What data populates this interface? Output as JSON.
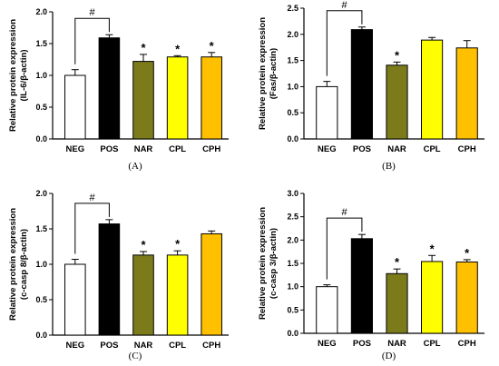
{
  "figure": {
    "colors": {
      "NEG": "#ffffff",
      "POS": "#000000",
      "NAR": "#7b7b1c",
      "CPL": "#ffff00",
      "CPH": "#ffc000"
    }
  },
  "chart_data": [
    {
      "type": "bar",
      "panel_label": "(A)",
      "ylabel_line1": "Relative protein expression",
      "ylabel_line2": "(IL-6/β-actin)",
      "categories": [
        "NEG",
        "POS",
        "NAR",
        "CPL",
        "CPH"
      ],
      "values": [
        1.0,
        1.59,
        1.22,
        1.29,
        1.29
      ],
      "errors": [
        0.09,
        0.05,
        0.11,
        0.02,
        0.07
      ],
      "ylim": [
        0,
        2.0
      ],
      "yticks": [
        "0.0",
        "0.5",
        "1.0",
        "1.5",
        "2.0"
      ],
      "ytick_values": [
        0,
        0.5,
        1.0,
        1.5,
        2.0
      ],
      "significance": [
        "",
        "",
        "*",
        "*",
        "*"
      ],
      "comparison_mark": "#"
    },
    {
      "type": "bar",
      "panel_label": "(B)",
      "ylabel_line1": "Relative protein expression",
      "ylabel_line2": "(Fas/β-actin)",
      "categories": [
        "NEG",
        "POS",
        "NAR",
        "CPL",
        "CPH"
      ],
      "values": [
        1.0,
        2.09,
        1.41,
        1.89,
        1.74
      ],
      "errors": [
        0.1,
        0.05,
        0.06,
        0.05,
        0.14
      ],
      "ylim": [
        0,
        2.5
      ],
      "yticks": [
        "0.0",
        "0.5",
        "1.0",
        "1.5",
        "2.0",
        "2.5"
      ],
      "ytick_values": [
        0,
        0.5,
        1.0,
        1.5,
        2.0,
        2.5
      ],
      "significance": [
        "",
        "",
        "*",
        "",
        ""
      ],
      "comparison_mark": "#"
    },
    {
      "type": "bar",
      "panel_label": "(C)",
      "ylabel_line1": "Relative protein expression",
      "ylabel_line2": "(c-casp 8/β-actin)",
      "categories": [
        "NEG",
        "POS",
        "NAR",
        "CPL",
        "CPH"
      ],
      "values": [
        1.0,
        1.57,
        1.13,
        1.13,
        1.43
      ],
      "errors": [
        0.07,
        0.06,
        0.05,
        0.06,
        0.04
      ],
      "ylim": [
        0,
        2.0
      ],
      "yticks": [
        "0.0",
        "0.5",
        "1.0",
        "1.5",
        "2.0"
      ],
      "ytick_values": [
        0,
        0.5,
        1.0,
        1.5,
        2.0
      ],
      "significance": [
        "",
        "",
        "*",
        "*",
        ""
      ],
      "comparison_mark": "#"
    },
    {
      "type": "bar",
      "panel_label": "(D)",
      "ylabel_line1": "Relative protein expression",
      "ylabel_line2": "(c-casp 3/β-actin)",
      "categories": [
        "NEG",
        "POS",
        "NAR",
        "CPL",
        "CPH"
      ],
      "values": [
        1.0,
        2.03,
        1.28,
        1.54,
        1.53
      ],
      "errors": [
        0.04,
        0.09,
        0.1,
        0.13,
        0.05
      ],
      "ylim": [
        0,
        3.0
      ],
      "yticks": [
        "0.0",
        "0.5",
        "1.0",
        "1.5",
        "2.0",
        "2.5",
        "3.0"
      ],
      "ytick_values": [
        0,
        0.5,
        1.0,
        1.5,
        2.0,
        2.5,
        3.0
      ],
      "significance": [
        "",
        "",
        "*",
        "*",
        "*"
      ],
      "comparison_mark": "#"
    }
  ]
}
